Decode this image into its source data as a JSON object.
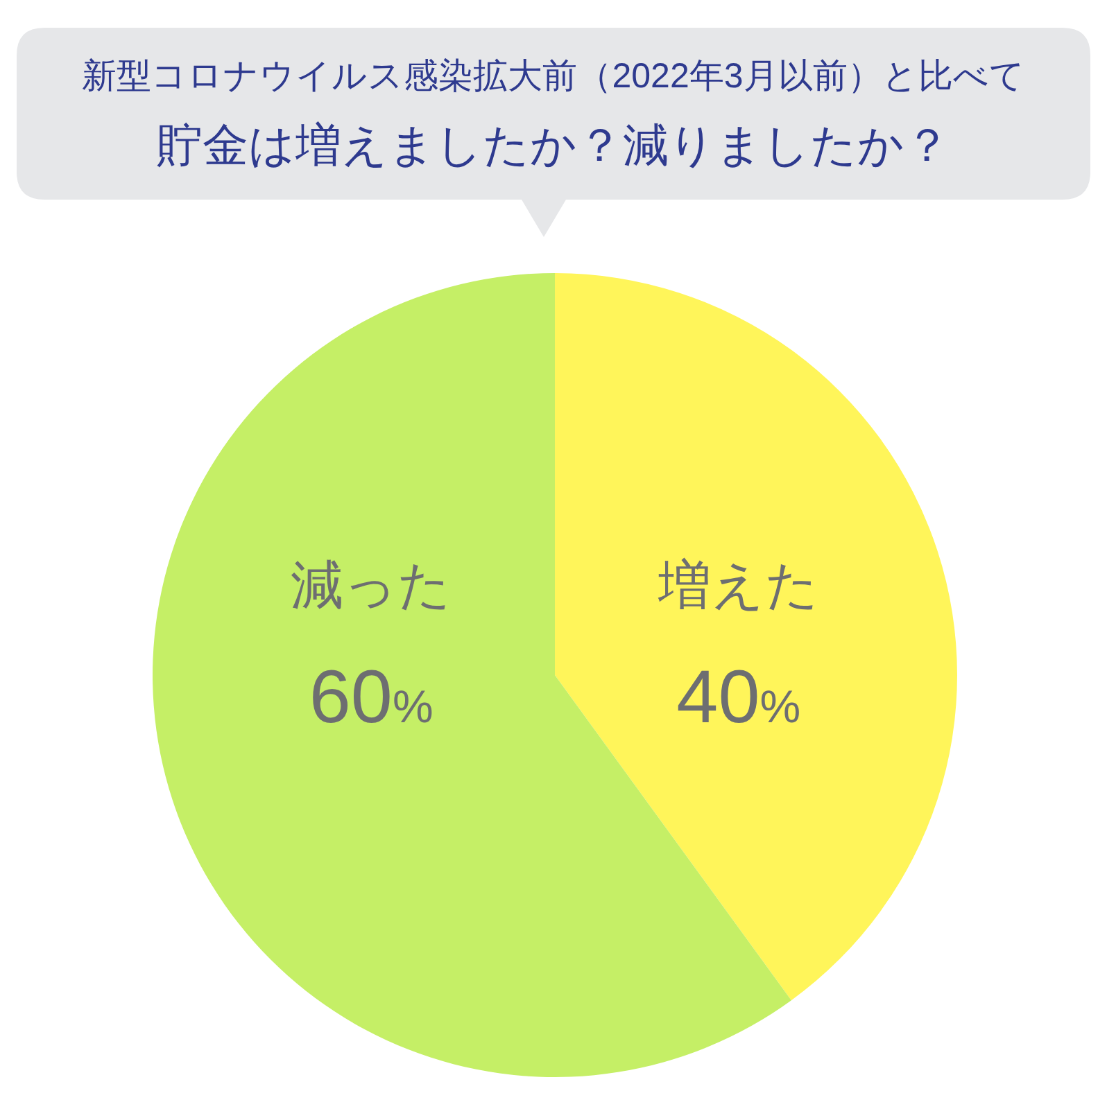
{
  "chart_data": {
    "type": "pie",
    "subtitle": "新型コロナウイルス感染拡大前（2022年3月以前）と比べて",
    "title": "貯金は増えましたか？減りましたか？",
    "categories": [
      "増えた",
      "減った"
    ],
    "values": [
      40,
      60
    ],
    "colors": [
      "#fff55a",
      "#c5ef66"
    ],
    "value_labels": [
      "40%",
      "60%"
    ]
  }
}
